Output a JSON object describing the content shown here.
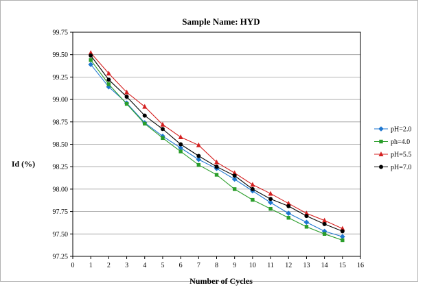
{
  "chart_data": {
    "type": "line",
    "title": "Sample Name: HYD",
    "xlabel": "Number of Cycles",
    "ylabel": "Id (%)",
    "xlim": [
      0,
      16
    ],
    "ylim": [
      97.25,
      99.75
    ],
    "x_ticks": [
      "0",
      "1",
      "2",
      "3",
      "4",
      "5",
      "6",
      "7",
      "8",
      "9",
      "10",
      "11",
      "12",
      "13",
      "14",
      "15",
      "16"
    ],
    "y_ticks": [
      "97.25",
      "97.50",
      "97.75",
      "98.00",
      "98.25",
      "98.50",
      "98.75",
      "99.00",
      "99.25",
      "99.50",
      "99.75"
    ],
    "y_tick_values": [
      97.25,
      97.5,
      97.75,
      98.0,
      98.25,
      98.5,
      98.75,
      99.0,
      99.25,
      99.5,
      99.75
    ],
    "grid": "horizontal",
    "legend_position": "right",
    "x": [
      1,
      2,
      3,
      4,
      5,
      6,
      7,
      8,
      9,
      10,
      11,
      12,
      13,
      14,
      15
    ],
    "series": [
      {
        "name": "pH=2.0",
        "color": "#1f77d0",
        "marker": "diamond",
        "values": [
          99.39,
          99.14,
          98.96,
          98.74,
          98.59,
          98.46,
          98.33,
          98.23,
          98.11,
          97.98,
          97.85,
          97.73,
          97.63,
          97.53,
          97.47
        ]
      },
      {
        "name": "ph=4.0",
        "color": "#2a9d2a",
        "marker": "square",
        "values": [
          99.44,
          99.17,
          98.95,
          98.73,
          98.57,
          98.42,
          98.27,
          98.16,
          98.0,
          97.88,
          97.78,
          97.68,
          97.58,
          97.5,
          97.43
        ]
      },
      {
        "name": "pH=5.5",
        "color": "#d42020",
        "marker": "triangle",
        "values": [
          99.52,
          99.29,
          99.08,
          98.92,
          98.72,
          98.58,
          98.49,
          98.3,
          98.18,
          98.05,
          97.95,
          97.84,
          97.73,
          97.65,
          97.56
        ]
      },
      {
        "name": "pH=7.0",
        "color": "#000000",
        "marker": "circle",
        "values": [
          99.49,
          99.22,
          99.03,
          98.82,
          98.67,
          98.5,
          98.37,
          98.25,
          98.15,
          98.0,
          97.89,
          97.81,
          97.7,
          97.61,
          97.53
        ]
      }
    ]
  }
}
